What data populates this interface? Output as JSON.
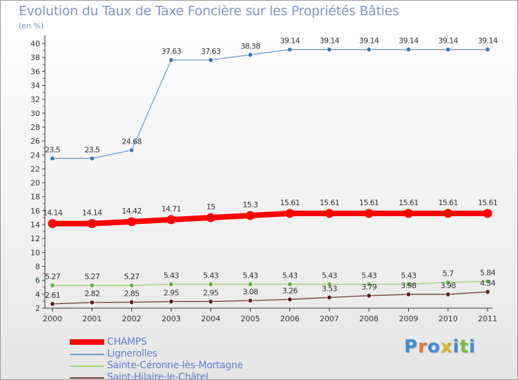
{
  "chart_data": {
    "type": "line",
    "title": "Evolution du Taux de Taxe Foncière sur les Propriétés Bâties",
    "ylabel": "(en %)",
    "xlabel": "",
    "x": [
      "2000",
      "2001",
      "2002",
      "2003",
      "2004",
      "2005",
      "2006",
      "2007",
      "2008",
      "2009",
      "2010",
      "2011"
    ],
    "ylim": [
      2,
      40
    ],
    "yticks": [
      "2",
      "4",
      "6",
      "8",
      "10",
      "12",
      "14",
      "16",
      "18",
      "20",
      "22",
      "24",
      "26",
      "28",
      "30",
      "32",
      "34",
      "36",
      "38",
      "40"
    ],
    "grid": false,
    "legend_position": "bottom-left",
    "series": [
      {
        "name": "CHAMPS",
        "color": "#ff0000",
        "emphasis": true,
        "values": [
          14.14,
          14.14,
          14.42,
          14.71,
          15,
          15.3,
          15.61,
          15.61,
          15.61,
          15.61,
          15.61,
          15.61
        ],
        "labels": [
          "14.14",
          "14.14",
          "14.42",
          "14.71",
          "15",
          "15.3",
          "15.61",
          "15.61",
          "15.61",
          "15.61",
          "15.61",
          "15.61"
        ]
      },
      {
        "name": "Lignerolles",
        "color": "#6d9bd6",
        "marker": "#3a77c0",
        "values": [
          23.5,
          23.5,
          24.68,
          37.63,
          37.63,
          38.38,
          39.14,
          39.14,
          39.14,
          39.14,
          39.14,
          39.14
        ],
        "labels": [
          "23.5",
          "23.5",
          "24.68",
          "37.63",
          "37.63",
          "38.38",
          "39.14",
          "39.14",
          "39.14",
          "39.14",
          "39.14",
          "39.14"
        ]
      },
      {
        "name": "Sainte-Céronne-lès-Mortagne",
        "color": "#9bd86a",
        "marker": "#5eb33b",
        "values": [
          5.27,
          5.27,
          5.27,
          5.43,
          5.43,
          5.43,
          5.43,
          5.43,
          5.43,
          5.43,
          5.7,
          5.84
        ],
        "labels": [
          "5.27",
          "5.27",
          "5.27",
          "5.43",
          "5.43",
          "5.43",
          "5.43",
          "5.43",
          "5.43",
          "5.43",
          "5.7",
          "5.84"
        ]
      },
      {
        "name": "Saint-Hilaire-le-Châtel",
        "color": "#7a3b3b",
        "marker": "#5a1f1f",
        "values": [
          2.61,
          2.82,
          2.85,
          2.95,
          2.95,
          3.08,
          3.26,
          3.53,
          3.79,
          3.98,
          3.98,
          4.34
        ],
        "labels": [
          "2.61",
          "2.82",
          "2.85",
          "2.95",
          "2.95",
          "3.08",
          "3.26",
          "3.53",
          "3.79",
          "3.98",
          "3.98",
          "4.34"
        ]
      }
    ]
  },
  "logo": {
    "letters": [
      "P",
      "r",
      "o",
      "x",
      "i",
      "t",
      "i"
    ],
    "colors": [
      "#3d8fd6",
      "#e0782b",
      "#3d8fd6",
      "#e0b52b",
      "#3d8fd6",
      "#7bbf3a",
      "#3d8fd6"
    ]
  }
}
